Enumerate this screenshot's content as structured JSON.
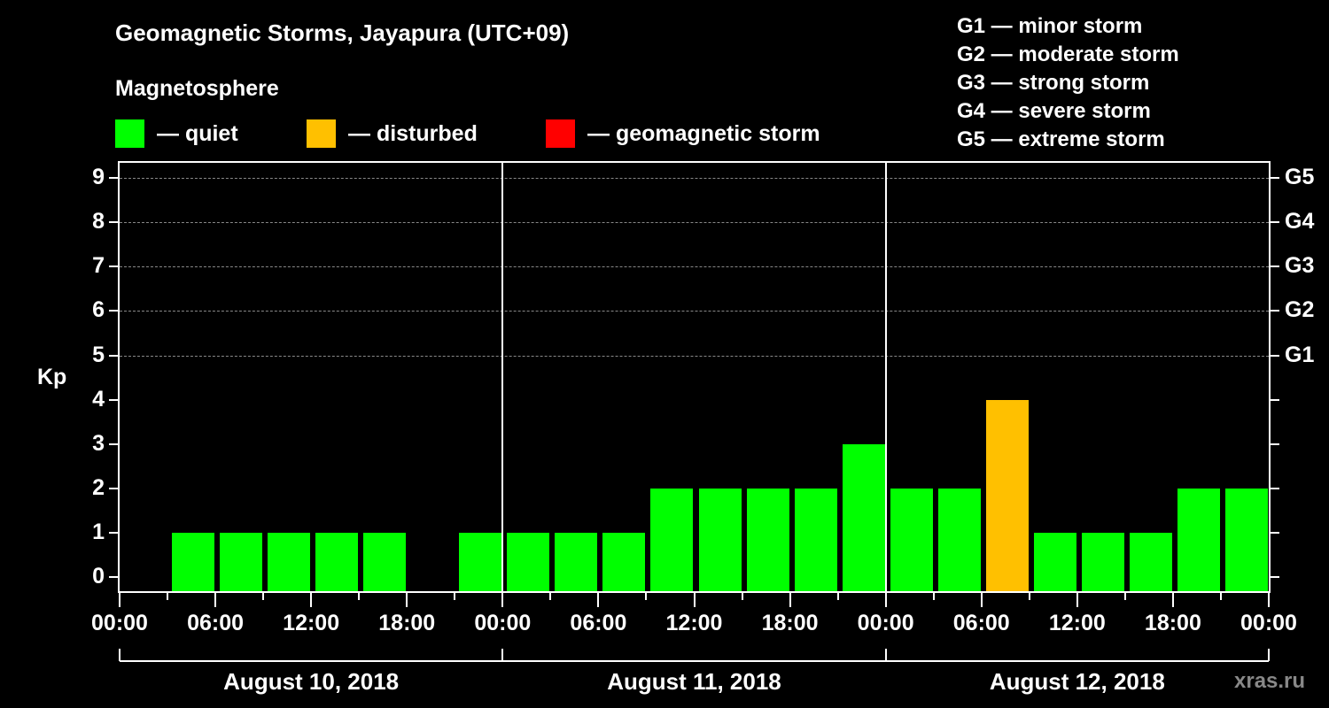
{
  "header": {
    "title": "Geomagnetic Storms, Jayapura (UTC+09)",
    "subtitle": "Magnetosphere"
  },
  "legend": {
    "items": [
      {
        "label": "— quiet",
        "color": "#00ff00"
      },
      {
        "label": "— disturbed",
        "color": "#ffc000"
      },
      {
        "label": "— geomagnetic storm",
        "color": "#ff0000"
      }
    ],
    "scale": [
      "G1 — minor storm",
      "G2 — moderate storm",
      "G3 — strong storm",
      "G4 — severe storm",
      "G5 — extreme storm"
    ]
  },
  "axes": {
    "ylabel": "Kp",
    "yticks": [
      "0",
      "1",
      "2",
      "3",
      "4",
      "5",
      "6",
      "7",
      "8",
      "9"
    ],
    "yticks_right": [
      "G1",
      "G2",
      "G3",
      "G4",
      "G5"
    ],
    "xticks": [
      "00:00",
      "06:00",
      "12:00",
      "18:00",
      "00:00",
      "06:00",
      "12:00",
      "18:00",
      "00:00",
      "06:00",
      "12:00",
      "18:00",
      "00:00"
    ],
    "days": [
      "August 10, 2018",
      "August 11, 2018",
      "August 12, 2018"
    ]
  },
  "watermark": "xras.ru",
  "chart_data": {
    "type": "bar",
    "title": "Geomagnetic Storms, Jayapura (UTC+09)",
    "subtitle": "Magnetosphere",
    "xlabel": "",
    "ylabel": "Kp",
    "ylim": [
      0,
      9
    ],
    "grid": {
      "y_dashed_at": [
        5,
        6,
        7,
        8,
        9
      ]
    },
    "categories": [
      "Aug 10 00:00",
      "Aug 10 03:00",
      "Aug 10 06:00",
      "Aug 10 09:00",
      "Aug 10 12:00",
      "Aug 10 15:00",
      "Aug 10 18:00",
      "Aug 10 21:00",
      "Aug 11 00:00",
      "Aug 11 03:00",
      "Aug 11 06:00",
      "Aug 11 09:00",
      "Aug 11 12:00",
      "Aug 11 15:00",
      "Aug 11 18:00",
      "Aug 11 21:00",
      "Aug 12 00:00",
      "Aug 12 03:00",
      "Aug 12 06:00",
      "Aug 12 09:00",
      "Aug 12 12:00",
      "Aug 12 15:00",
      "Aug 12 18:00",
      "Aug 12 21:00"
    ],
    "values": [
      0,
      1,
      1,
      1,
      1,
      1,
      0,
      1,
      1,
      1,
      1,
      2,
      2,
      2,
      2,
      3,
      2,
      2,
      4,
      1,
      1,
      1,
      2,
      2
    ],
    "status": [
      "quiet",
      "quiet",
      "quiet",
      "quiet",
      "quiet",
      "quiet",
      "quiet",
      "quiet",
      "quiet",
      "quiet",
      "quiet",
      "quiet",
      "quiet",
      "quiet",
      "quiet",
      "quiet",
      "quiet",
      "quiet",
      "disturbed",
      "quiet",
      "quiet",
      "quiet",
      "quiet",
      "quiet"
    ],
    "legend": [
      "quiet",
      "disturbed",
      "geomagnetic storm"
    ],
    "right_axis": {
      "5": "G1",
      "6": "G2",
      "7": "G3",
      "8": "G4",
      "9": "G5"
    },
    "legend_position": "top"
  }
}
